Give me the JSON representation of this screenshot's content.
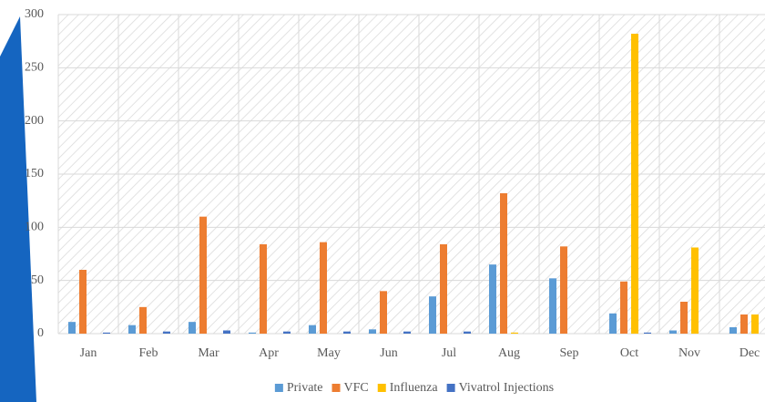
{
  "chart_data": {
    "type": "bar",
    "categories": [
      "Jan",
      "Feb",
      "Mar",
      "Apr",
      "May",
      "Jun",
      "Jul",
      "Aug",
      "Sep",
      "Oct",
      "Nov",
      "Dec"
    ],
    "series": [
      {
        "name": "Private",
        "color": "#5b9bd5",
        "values": [
          11,
          8,
          11,
          1,
          8,
          4,
          35,
          65,
          52,
          19,
          3,
          6
        ]
      },
      {
        "name": "VFC",
        "color": "#ed7d31",
        "values": [
          60,
          25,
          110,
          84,
          86,
          40,
          84,
          132,
          82,
          49,
          30,
          18
        ]
      },
      {
        "name": "Influenza",
        "color": "#ffc000",
        "values": [
          0,
          0,
          0,
          0,
          0,
          0,
          0,
          1,
          0,
          282,
          81,
          18
        ]
      },
      {
        "name": "Vivatrol Injections",
        "color": "#4472c4",
        "values": [
          1,
          2,
          3,
          2,
          2,
          2,
          2,
          0,
          0,
          1,
          0,
          0
        ]
      }
    ],
    "ylim": [
      0,
      300
    ],
    "yticks": [
      0,
      50,
      100,
      150,
      200,
      250,
      300
    ],
    "grid": true,
    "legend": "bottom"
  }
}
